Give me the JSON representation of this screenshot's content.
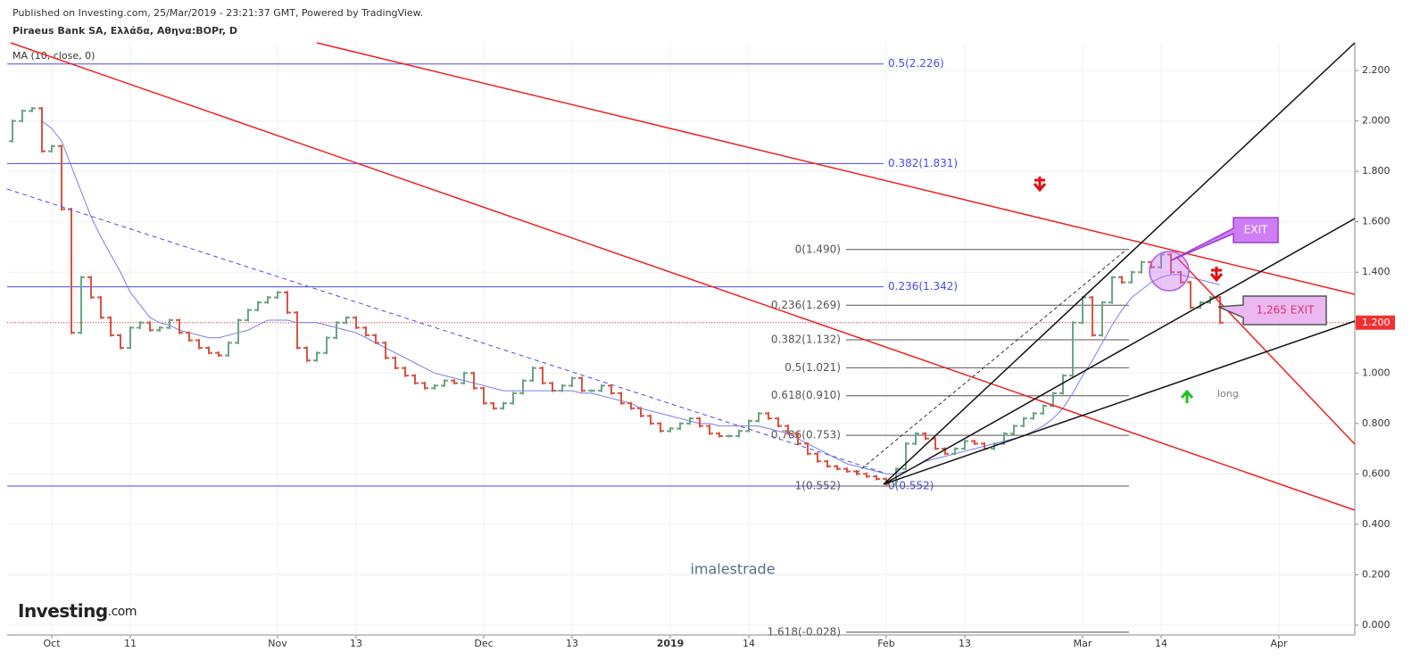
{
  "header": "Published on Investing.com, 25/Mar/2019 - 23:21:37 GMT, Powered by TradingView.",
  "chart_data": {
    "type": "ohlc",
    "title": "Piraeus Bank SA, Ελλάδα, Αθηνα:BOPr, D",
    "indicator_label": "MA (10, close, 0)",
    "categories": [
      null,
      null,
      null,
      null,
      "Oct",
      null,
      null,
      null,
      null,
      null,
      null,
      null,
      "11",
      null,
      null,
      null,
      null,
      null,
      null,
      null,
      null,
      null,
      null,
      null,
      null,
      null,
      null,
      "Nov",
      null,
      null,
      null,
      null,
      null,
      null,
      null,
      "13",
      null,
      null,
      null,
      null,
      null,
      null,
      null,
      null,
      null,
      null,
      null,
      null,
      "Dec",
      null,
      null,
      null,
      null,
      null,
      null,
      null,
      null,
      "13",
      null,
      null,
      null,
      null,
      null,
      null,
      null,
      null,
      null,
      "2019",
      null,
      null,
      null,
      null,
      null,
      null,
      null,
      "14",
      null,
      null,
      null,
      null,
      null,
      null,
      null,
      null,
      null,
      null,
      null,
      null,
      null,
      "Feb",
      null,
      null,
      null,
      null,
      null,
      null,
      null,
      "13",
      null,
      null,
      null,
      null,
      null,
      null,
      null,
      null,
      null,
      null,
      null,
      "Mar",
      null,
      null,
      null,
      null,
      null,
      null,
      null,
      "14",
      null,
      null,
      null,
      null,
      null,
      null,
      null,
      null,
      null,
      null,
      null,
      "Apr"
    ],
    "open": [
      1.92,
      2.0,
      2.04,
      2.05,
      1.88,
      1.9,
      1.65,
      1.16,
      1.38,
      1.3,
      1.22,
      1.15,
      1.1,
      1.18,
      1.2,
      1.17,
      1.18,
      1.21,
      1.16,
      1.13,
      1.1,
      1.08,
      1.07,
      1.12,
      1.21,
      1.25,
      1.28,
      1.3,
      1.32,
      1.24,
      1.1,
      1.05,
      1.08,
      1.14,
      1.2,
      1.22,
      1.18,
      1.15,
      1.12,
      1.06,
      1.02,
      0.99,
      0.96,
      0.94,
      0.95,
      0.97,
      0.96,
      1.0,
      0.94,
      0.88,
      0.86,
      0.88,
      0.92,
      0.97,
      1.02,
      0.96,
      0.93,
      0.95,
      0.98,
      0.93,
      0.93,
      0.95,
      0.92,
      0.88,
      0.86,
      0.83,
      0.8,
      0.77,
      0.78,
      0.8,
      0.82,
      0.79,
      0.76,
      0.75,
      0.75,
      0.77,
      0.81,
      0.84,
      0.82,
      0.79,
      0.76,
      0.72,
      0.68,
      0.65,
      0.63,
      0.62,
      0.61,
      0.6,
      0.59,
      0.58,
      0.56,
      0.62,
      0.72,
      0.76,
      0.74,
      0.7,
      0.68,
      0.7,
      0.73,
      0.72,
      0.7,
      0.72,
      0.76,
      0.79,
      0.82,
      0.84,
      0.87,
      0.92,
      0.99,
      1.2,
      1.3,
      1.15,
      1.28,
      1.38,
      1.36,
      1.4,
      1.44,
      1.42,
      1.47,
      1.4,
      1.36,
      1.26,
      1.28,
      1.3,
      null,
      null,
      null,
      null,
      null,
      null
    ],
    "close": [
      2.0,
      2.04,
      2.05,
      1.88,
      1.9,
      1.65,
      1.16,
      1.38,
      1.3,
      1.22,
      1.15,
      1.1,
      1.18,
      1.2,
      1.17,
      1.18,
      1.21,
      1.16,
      1.13,
      1.1,
      1.08,
      1.07,
      1.12,
      1.21,
      1.25,
      1.28,
      1.3,
      1.32,
      1.24,
      1.1,
      1.05,
      1.08,
      1.14,
      1.2,
      1.22,
      1.18,
      1.15,
      1.12,
      1.06,
      1.02,
      0.99,
      0.96,
      0.94,
      0.95,
      0.97,
      0.96,
      1.0,
      0.94,
      0.88,
      0.86,
      0.88,
      0.92,
      0.97,
      1.02,
      0.96,
      0.93,
      0.95,
      0.98,
      0.93,
      0.93,
      0.95,
      0.92,
      0.88,
      0.86,
      0.83,
      0.8,
      0.77,
      0.78,
      0.8,
      0.82,
      0.79,
      0.76,
      0.75,
      0.75,
      0.77,
      0.81,
      0.84,
      0.82,
      0.79,
      0.76,
      0.72,
      0.68,
      0.65,
      0.63,
      0.62,
      0.61,
      0.6,
      0.59,
      0.58,
      0.56,
      0.62,
      0.72,
      0.76,
      0.74,
      0.7,
      0.68,
      0.7,
      0.73,
      0.72,
      0.7,
      0.72,
      0.76,
      0.79,
      0.82,
      0.84,
      0.87,
      0.92,
      0.99,
      1.2,
      1.3,
      1.15,
      1.28,
      1.38,
      1.36,
      1.4,
      1.44,
      1.42,
      1.47,
      1.4,
      1.36,
      1.26,
      1.28,
      1.3,
      1.2,
      null,
      null,
      null,
      null,
      null,
      null
    ],
    "up_color": "#6ba583",
    "down_color": "#d75442",
    "ma": {
      "color": "#7b7bea",
      "values": [
        null,
        null,
        null,
        2.0,
        1.97,
        1.92,
        1.82,
        1.72,
        1.62,
        1.54,
        1.47,
        1.4,
        1.32,
        1.27,
        1.22,
        1.2,
        1.19,
        1.17,
        1.16,
        1.15,
        1.14,
        1.14,
        1.15,
        1.16,
        1.17,
        1.19,
        1.21,
        1.21,
        1.21,
        1.2,
        1.2,
        1.2,
        1.19,
        1.18,
        1.17,
        1.16,
        1.14,
        1.12,
        1.1,
        1.08,
        1.06,
        1.04,
        1.02,
        1.0,
        0.99,
        0.98,
        0.97,
        0.96,
        0.95,
        0.94,
        0.93,
        0.93,
        0.93,
        0.93,
        0.93,
        0.93,
        0.93,
        0.93,
        0.92,
        0.92,
        0.91,
        0.9,
        0.89,
        0.88,
        0.86,
        0.85,
        0.84,
        0.83,
        0.82,
        0.81,
        0.8,
        0.8,
        0.79,
        0.79,
        0.79,
        0.79,
        0.79,
        0.78,
        0.77,
        0.76,
        0.74,
        0.72,
        0.7,
        0.68,
        0.66,
        0.64,
        0.63,
        0.62,
        0.61,
        0.6,
        0.6,
        0.61,
        0.63,
        0.65,
        0.66,
        0.67,
        0.68,
        0.69,
        0.7,
        0.71,
        0.72,
        0.73,
        0.74,
        0.75,
        0.77,
        0.79,
        0.82,
        0.86,
        0.92,
        0.99,
        1.05,
        1.12,
        1.19,
        1.25,
        1.3,
        1.33,
        1.36,
        1.38,
        1.39,
        1.39,
        1.38,
        1.37,
        1.36,
        1.35,
        null,
        null,
        null,
        null,
        null,
        null
      ]
    },
    "ylim": [
      -0.039,
      2.31
    ],
    "yticks": [
      {
        "value": 0,
        "label": "0.000"
      },
      {
        "value": 0.2,
        "label": "0.200"
      },
      {
        "value": 0.4,
        "label": "0.400"
      },
      {
        "value": 0.6,
        "label": "0.600"
      },
      {
        "value": 0.8,
        "label": "0.800"
      },
      {
        "value": 1,
        "label": "1.000"
      },
      {
        "value": 1.2,
        "label": "1.200"
      },
      {
        "value": 1.4,
        "label": "1.400"
      },
      {
        "value": 1.6,
        "label": "1.600"
      },
      {
        "value": 1.8,
        "label": "1.800"
      },
      {
        "value": 2,
        "label": "2.000"
      },
      {
        "value": 2.2,
        "label": "2.200"
      }
    ],
    "grid": true,
    "last_price": {
      "value": 1.2,
      "label": "1.200",
      "color": "#f23030"
    },
    "fib_blue": {
      "color": "#4a4ae8",
      "levels": [
        {
          "value": 2.226,
          "label": "0.5(2.226)"
        },
        {
          "value": 1.831,
          "label": "0.382(1.831)"
        },
        {
          "value": 1.342,
          "label": "0.236(1.342)"
        },
        {
          "value": 0.552,
          "label": "0(0.552)"
        }
      ]
    },
    "fib_black": {
      "color": "#555555",
      "levels": [
        {
          "value": 1.49,
          "label": "0(1.490)"
        },
        {
          "value": 1.269,
          "label": "0.236(1.269)"
        },
        {
          "value": 1.132,
          "label": "0.382(1.132)"
        },
        {
          "value": 1.021,
          "label": "0.5(1.021)"
        },
        {
          "value": 0.91,
          "label": "0.618(0.910)"
        },
        {
          "value": 0.753,
          "label": "0.786(0.753)"
        },
        {
          "value": 0.552,
          "label": "1(0.552)"
        },
        {
          "value": -0.028,
          "label": "1.618(-0.028)"
        }
      ]
    },
    "annotations": {
      "exit": "EXIT",
      "exit_price": "1,265 EXIT",
      "long": "long"
    },
    "watermark": "imalestrade",
    "logo": [
      "Investing",
      ".com"
    ]
  }
}
